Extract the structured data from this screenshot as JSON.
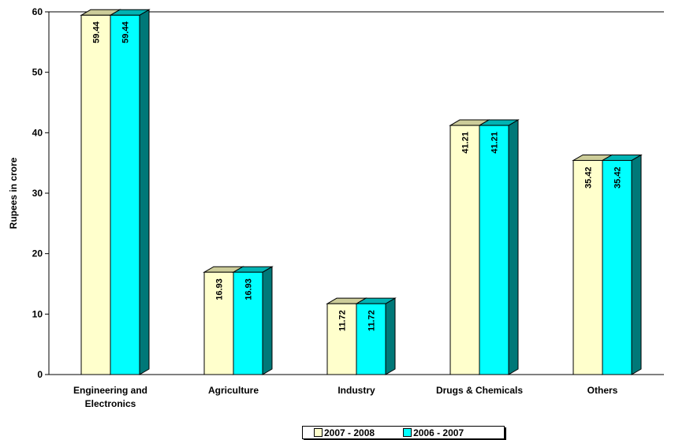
{
  "chart_data": {
    "type": "bar",
    "title": "",
    "xlabel": "",
    "ylabel": "Rupees in crore",
    "ylim": [
      0,
      60
    ],
    "yticks": [
      "0",
      "10",
      "20",
      "30",
      "40",
      "50",
      "60"
    ],
    "categories": [
      "Engineering and\nElectronics",
      "Agriculture",
      "Industry",
      "Drugs & Chemicals",
      "Others"
    ],
    "series": [
      {
        "name": "2007 - 2008",
        "values": [
          59.44,
          16.93,
          11.72,
          41.21,
          35.42
        ],
        "labels": [
          "59.44",
          "16.93",
          "11.72",
          "41.21",
          "35.42"
        ]
      },
      {
        "name": "2006 - 2007",
        "values": [
          59.44,
          16.93,
          11.72,
          41.21,
          35.42
        ],
        "labels": [
          "59.44",
          "16.93",
          "11.72",
          "41.21",
          "35.42"
        ]
      }
    ],
    "legend_position": "bottom",
    "grid": false
  },
  "colors": {
    "series": [
      {
        "front": "#ffffcc",
        "side": "#b8b88f",
        "top": "#cccc99"
      },
      {
        "front": "#00ffff",
        "side": "#007878",
        "top": "#00b3b3"
      }
    ],
    "axis": "#000000"
  }
}
